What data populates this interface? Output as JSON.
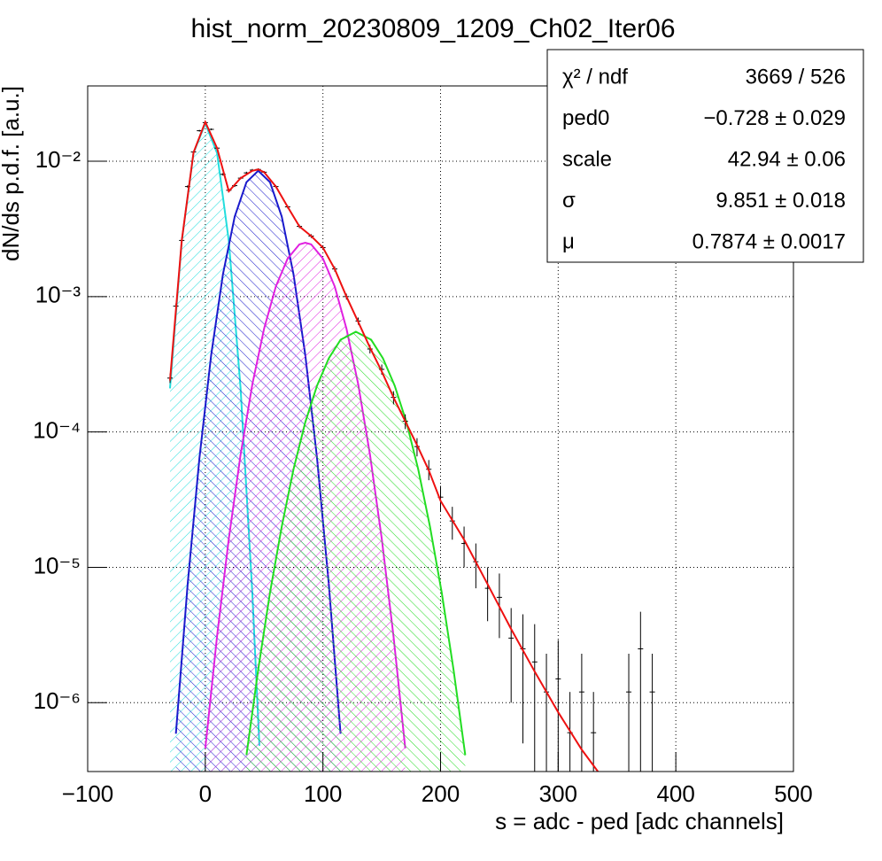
{
  "chart_data": {
    "type": "line",
    "title": "hist_norm_20230809_1209_Ch02_Iter06",
    "x_label": "s = adc - ped [adc channels]",
    "y_label": "dN/ds p.d.f. [a.u.]",
    "log_y": true,
    "grid": true,
    "xlim": [
      -100,
      500
    ],
    "ylim": [
      3.1e-07,
      0.036
    ],
    "xticks": [
      {
        "value": -100,
        "label": "−100"
      },
      0,
      100,
      200,
      300,
      400,
      500
    ],
    "yticks": [
      {
        "value": 1e-06,
        "label": "10⁻⁶"
      },
      {
        "value": 1e-05,
        "label": "10⁻⁵"
      },
      {
        "value": 0.0001,
        "label": "10⁻⁴"
      },
      {
        "value": 0.001,
        "label": "10⁻³"
      },
      {
        "value": 0.01,
        "label": "10⁻²"
      }
    ],
    "stats": [
      [
        "χ² / ndf",
        "3669 / 526"
      ],
      [
        "ped0",
        "−0.728 ± 0.029"
      ],
      [
        "scale",
        "42.94 ± 0.06"
      ],
      [
        "σ",
        "9.851 ± 0.018"
      ],
      [
        "μ",
        "0.7874 ± 0.0017"
      ]
    ],
    "series": [
      {
        "mode": "errorbar",
        "color": "#000000",
        "x": [
          -30,
          -25,
          -20,
          -15,
          -10,
          -5,
          0,
          5,
          10,
          15,
          20,
          25,
          30,
          35,
          40,
          45,
          50,
          60,
          70,
          80,
          90,
          100,
          110,
          120,
          130,
          140,
          150,
          160,
          170,
          180,
          190,
          200,
          210,
          220,
          230,
          240,
          250,
          260,
          270,
          280,
          290,
          300,
          310,
          320,
          330,
          360,
          370,
          380
        ],
        "values": [
          0.00025,
          0.00085,
          0.0026,
          0.0065,
          0.0117,
          0.0168,
          0.0193,
          0.0172,
          0.0125,
          0.008,
          0.0061,
          0.0066,
          0.0075,
          0.0082,
          0.0086,
          0.0087,
          0.0083,
          0.0065,
          0.0046,
          0.0033,
          0.0028,
          0.0023,
          0.0016,
          0.001,
          0.00066,
          0.00041,
          0.00029,
          0.00018,
          0.00012,
          7.8e-05,
          5.3e-05,
          3.3e-05,
          2.2e-05,
          1.5e-05,
          1.1e-05,
          7e-06,
          6e-06,
          3e-06,
          2.5e-06,
          2e-06,
          1.2e-06,
          1.5e-06,
          6e-07,
          1.2e-06,
          6e-07,
          1.2e-06,
          2.5e-06,
          1.2e-06
        ],
        "errors": [
          2e-05,
          4e-05,
          8e-05,
          0.00013,
          0.0002,
          0.00025,
          0.00028,
          0.00026,
          0.00022,
          0.00017,
          0.00015,
          0.00015,
          0.00016,
          0.00017,
          0.00017,
          0.00017,
          0.00017,
          0.00015,
          0.00012,
          0.0001,
          9e-05,
          8e-05,
          7e-05,
          5e-05,
          4e-05,
          3e-05,
          2.5e-05,
          2e-05,
          1.5e-05,
          1.2e-05,
          9e-06,
          7e-06,
          6e-06,
          5e-06,
          4e-06,
          3e-06,
          3e-06,
          2e-06,
          2e-06,
          1.8e-06,
          1.1e-06,
          1.4e-06,
          6e-07,
          1.1e-06,
          6e-07,
          1.1e-06,
          2.2e-06,
          1.1e-06
        ]
      },
      {
        "mode": "hatched-area",
        "color": "#22dddd",
        "x": [
          -30,
          -20,
          -10,
          0,
          10,
          20,
          30,
          40,
          46
        ],
        "values": [
          0.00021,
          0.00257,
          0.0115,
          0.019,
          0.0115,
          0.00257,
          0.00021,
          6.4e-06,
          4.8e-07
        ]
      },
      {
        "mode": "hatched-area",
        "color": "#1a1acc",
        "x": [
          -25,
          -15,
          -5,
          5,
          15,
          25,
          35,
          45,
          55,
          65,
          75,
          85,
          95,
          105,
          115
        ],
        "values": [
          5.9e-07,
          7.5e-06,
          6.4e-05,
          0.00037,
          0.00146,
          0.0039,
          0.007,
          0.0085,
          0.007,
          0.0039,
          0.00146,
          0.00037,
          6.4e-05,
          7.5e-06,
          5.9e-07
        ]
      },
      {
        "mode": "hatched-area",
        "color": "#e020e0",
        "x": [
          0,
          10,
          20,
          30,
          40,
          50,
          60,
          70,
          80,
          85,
          90,
          100,
          110,
          120,
          130,
          140,
          150,
          160,
          170
        ],
        "values": [
          4.6e-07,
          3.1e-06,
          1.63e-05,
          6.8e-05,
          0.000225,
          0.00058,
          0.00119,
          0.00191,
          0.00243,
          0.0025,
          0.00243,
          0.00191,
          0.00119,
          0.00058,
          0.000225,
          6.8e-05,
          1.63e-05,
          3.1e-06,
          4.6e-07
        ]
      },
      {
        "mode": "hatched-area",
        "color": "#22dd22",
        "x": [
          35,
          45,
          55,
          65,
          75,
          85,
          95,
          105,
          115,
          128,
          141,
          151,
          161,
          171,
          181,
          191,
          201,
          211,
          221
        ],
        "values": [
          4.1e-07,
          1.76e-06,
          6.5e-06,
          2e-05,
          5.3e-05,
          0.000118,
          0.00022,
          0.00035,
          0.00048,
          0.00055,
          0.00048,
          0.00035,
          0.00022,
          0.000118,
          5.3e-05,
          2e-05,
          6.5e-06,
          1.76e-06,
          4.1e-07
        ]
      },
      {
        "mode": "line",
        "color": "#ee1111",
        "x": [
          -30,
          -20,
          -10,
          0,
          10,
          20,
          30,
          40,
          45,
          50,
          60,
          70,
          80,
          90,
          100,
          110,
          120,
          130,
          140,
          150,
          160,
          170,
          180,
          190,
          200,
          220,
          240,
          260,
          280,
          300,
          320,
          335
        ],
        "values": [
          0.00024,
          0.0026,
          0.0116,
          0.0195,
          0.0125,
          0.006,
          0.0075,
          0.0085,
          0.0087,
          0.0083,
          0.0065,
          0.0046,
          0.0033,
          0.0028,
          0.0023,
          0.0016,
          0.001,
          0.00065,
          0.00042,
          0.00028,
          0.00018,
          0.00012,
          8e-05,
          5.2e-05,
          3.1e-05,
          1.6e-05,
          7.5e-06,
          3.5e-06,
          1.7e-06,
          8.5e-07,
          4.5e-07,
          3e-07
        ]
      }
    ]
  }
}
